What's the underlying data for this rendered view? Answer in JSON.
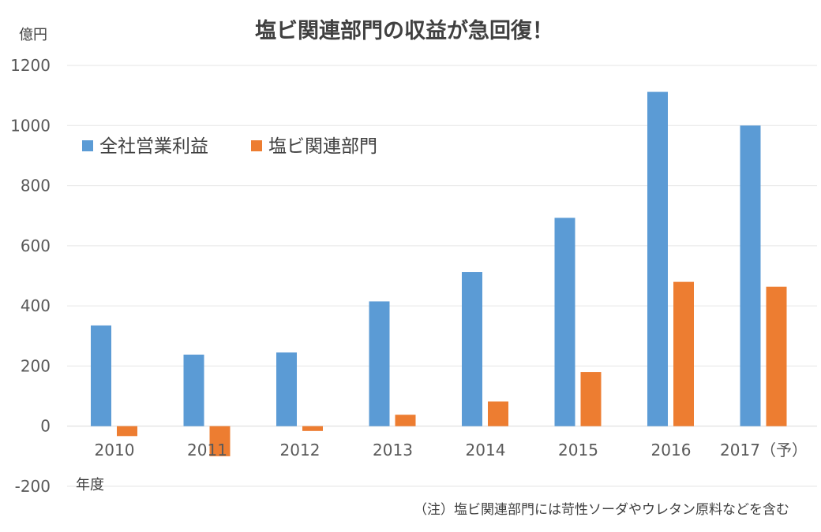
{
  "chart_data": {
    "type": "bar",
    "title": "塩ビ関連部門の収益が急回復！",
    "unit_label": "億円",
    "xlabel": "年度",
    "categories": [
      "2010",
      "2011",
      "2012",
      "2013",
      "2014",
      "2015",
      "2016",
      "2017（予）"
    ],
    "series": [
      {
        "name": "全社営業利益",
        "color": "#5B9BD5",
        "values": [
          335,
          238,
          245,
          415,
          513,
          693,
          1112,
          1000
        ]
      },
      {
        "name": "塩ビ関連部門",
        "color": "#ED7D31",
        "values": [
          -33,
          -100,
          -16,
          38,
          82,
          180,
          480,
          464
        ]
      }
    ],
    "ylim": [
      -200,
      1200
    ],
    "yticks": [
      "-200",
      "0",
      "200",
      "400",
      "600",
      "800",
      "1000",
      "1200"
    ],
    "grid": true,
    "legend_position": "top-left",
    "note": "（注）塩ビ関連部門には苛性ソーダやウレタン原料などを含む"
  }
}
